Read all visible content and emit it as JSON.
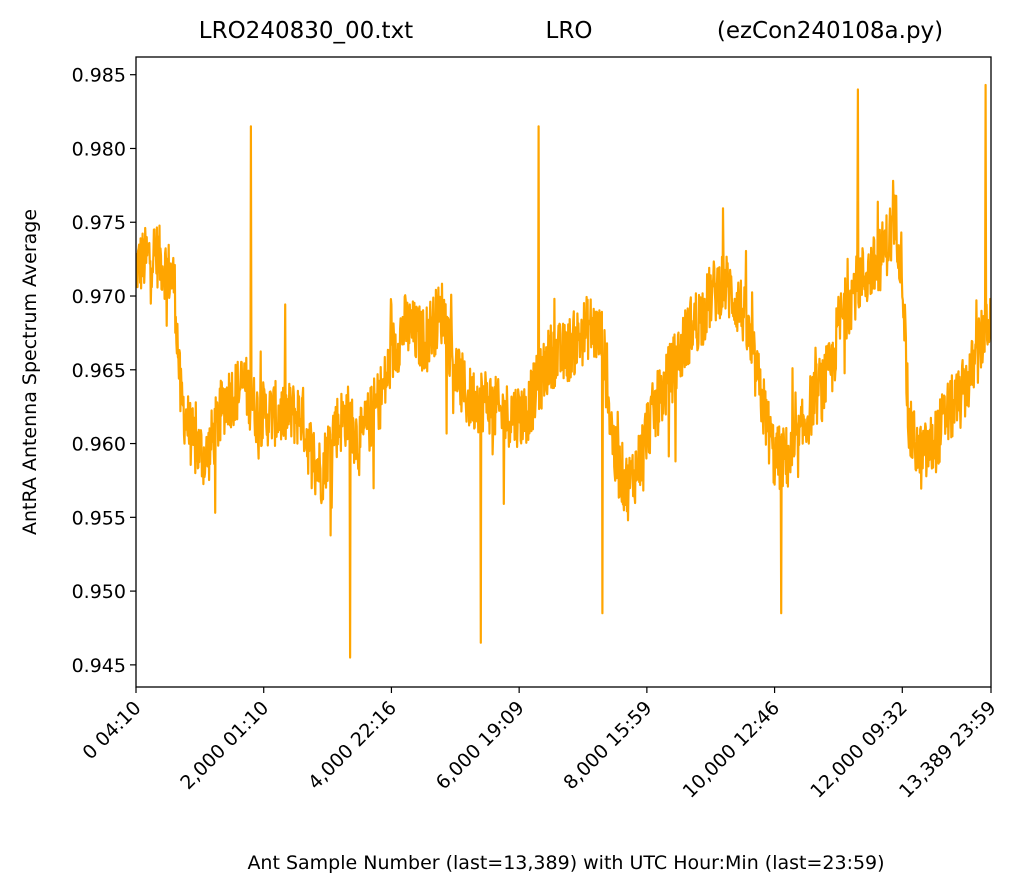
{
  "header": {
    "left": "LRO240830_00.txt",
    "center": "LRO",
    "right": "(ezCon240108a.py)"
  },
  "chart_data": {
    "type": "line",
    "title": "LRO240830_00.txt LRO (ezCon240108a.py)",
    "xlabel": "Ant Sample Number (last=13,389) with UTC Hour:Min (last=23:59)",
    "ylabel": "AntRA Antenna Spectrum Average",
    "xlim": [
      0,
      13389
    ],
    "ylim": [
      0.9435,
      0.9862
    ],
    "x_ticks": [
      {
        "value": 0,
        "label": "0  04:10"
      },
      {
        "value": 2000,
        "label": "2,000  01:10"
      },
      {
        "value": 4000,
        "label": "4,000  22:16"
      },
      {
        "value": 6000,
        "label": "6,000  19:09"
      },
      {
        "value": 8000,
        "label": "8,000  15:59"
      },
      {
        "value": 10000,
        "label": "10,000  12:46"
      },
      {
        "value": 12000,
        "label": "12,000  09:32"
      },
      {
        "value": 13389,
        "label": "13,389  23:59"
      }
    ],
    "y_ticks": [
      {
        "value": 0.945,
        "label": "0.945"
      },
      {
        "value": 0.95,
        "label": "0.950"
      },
      {
        "value": 0.955,
        "label": "0.955"
      },
      {
        "value": 0.96,
        "label": "0.960"
      },
      {
        "value": 0.965,
        "label": "0.965"
      },
      {
        "value": 0.97,
        "label": "0.970"
      },
      {
        "value": 0.975,
        "label": "0.975"
      },
      {
        "value": 0.98,
        "label": "0.980"
      },
      {
        "value": 0.985,
        "label": "0.985"
      }
    ],
    "grid": false,
    "series": [
      {
        "color": "#ffa500",
        "x": [
          0,
          300,
          600,
          700,
          900,
          1100,
          1400,
          1700,
          1900,
          2100,
          2400,
          2600,
          2700,
          2900,
          3100,
          3300,
          3500,
          3700,
          3900,
          4000,
          4200,
          4500,
          4800,
          5000,
          5200,
          5500,
          5700,
          5900,
          6100,
          6300,
          6500,
          6700,
          6900,
          7100,
          7300,
          7500,
          7700,
          7900,
          8000,
          8200,
          8500,
          8700,
          8900,
          9000,
          9200,
          9500,
          9700,
          9900,
          10000,
          10300,
          10600,
          10900,
          11000,
          11300,
          11600,
          11900,
          12000,
          12100,
          12300,
          12500,
          12700,
          12900,
          13100,
          13389
        ],
        "values": [
          0.972,
          0.973,
          0.971,
          0.963,
          0.96,
          0.959,
          0.963,
          0.964,
          0.962,
          0.962,
          0.962,
          0.962,
          0.96,
          0.958,
          0.961,
          0.962,
          0.96,
          0.962,
          0.964,
          0.966,
          0.968,
          0.967,
          0.969,
          0.965,
          0.963,
          0.963,
          0.962,
          0.962,
          0.962,
          0.964,
          0.966,
          0.966,
          0.967,
          0.968,
          0.967,
          0.959,
          0.957,
          0.959,
          0.961,
          0.963,
          0.966,
          0.968,
          0.969,
          0.97,
          0.971,
          0.969,
          0.965,
          0.961,
          0.959,
          0.959,
          0.963,
          0.965,
          0.968,
          0.971,
          0.972,
          0.975,
          0.972,
          0.961,
          0.959,
          0.96,
          0.962,
          0.963,
          0.965,
          0.969
        ]
      }
    ],
    "spikes": [
      {
        "x": 1800,
        "y": 0.9815
      },
      {
        "x": 3350,
        "y": 0.9455
      },
      {
        "x": 5400,
        "y": 0.9465
      },
      {
        "x": 6300,
        "y": 0.9815
      },
      {
        "x": 7300,
        "y": 0.9485
      },
      {
        "x": 10100,
        "y": 0.9485
      },
      {
        "x": 11300,
        "y": 0.984
      },
      {
        "x": 13300,
        "y": 0.9843
      }
    ]
  }
}
